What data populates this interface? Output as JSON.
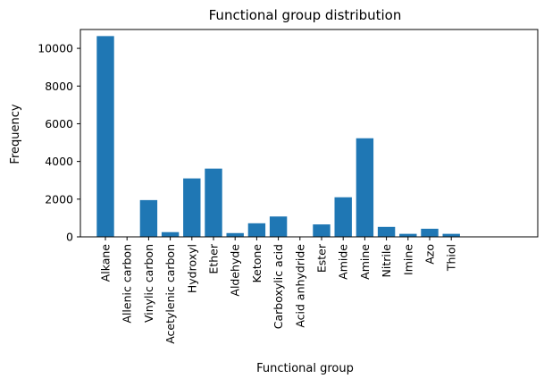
{
  "chart_data": {
    "type": "bar",
    "title": "Functional group distribution",
    "xlabel": "Functional group",
    "ylabel": "Frequency",
    "ylim": [
      0,
      11000
    ],
    "yticks": [
      0,
      2000,
      4000,
      6000,
      8000,
      10000
    ],
    "categories": [
      "Alkane",
      "Allenic carbon",
      "Vinylic carbon",
      "Acetylenic carbon",
      "Hydroxyl",
      "Ether",
      "Aldehyde",
      "Ketone",
      "Carboxylic acid",
      "Acid anhydride",
      "Ester",
      "Amide",
      "Amine",
      "Nitrile",
      "Imine",
      "Azo",
      "Thiol"
    ],
    "values": [
      10650,
      0,
      1950,
      250,
      3100,
      3620,
      200,
      720,
      1080,
      0,
      660,
      2100,
      5230,
      530,
      160,
      430,
      160
    ],
    "bar_color": "#1f77b4",
    "grid": false,
    "legend": false
  }
}
